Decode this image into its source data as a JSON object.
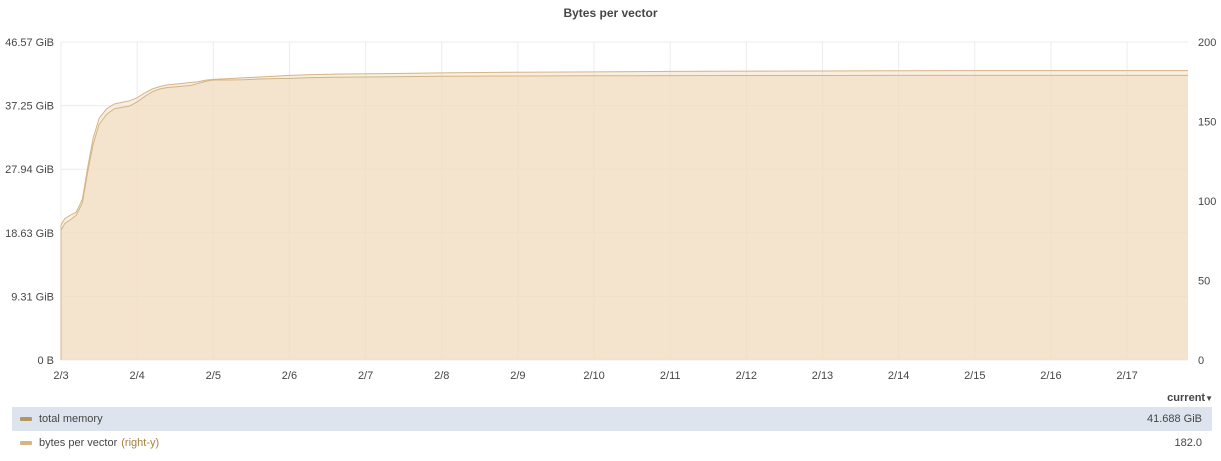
{
  "panel": {
    "title": "Bytes per vector"
  },
  "legend": {
    "header": "current",
    "rows": [
      {
        "name": "total memory",
        "note": "",
        "value": "41.688 GiB",
        "color": "#b39660"
      },
      {
        "name": "bytes per vector",
        "note": "(right-y)",
        "value": "182.0",
        "color": "#d8b483"
      }
    ]
  },
  "chart_data": {
    "type": "area",
    "title": "Bytes per vector",
    "xlabel": "",
    "ylabel": "",
    "grid": true,
    "x": [
      3.0,
      3.05,
      3.12,
      3.2,
      3.28,
      3.35,
      3.42,
      3.5,
      3.6,
      3.7,
      3.8,
      3.9,
      4.0,
      4.1,
      4.2,
      4.3,
      4.4,
      4.5,
      4.6,
      4.7,
      4.8,
      4.9,
      5.0,
      5.2,
      5.4,
      5.6,
      5.8,
      6.0,
      6.3,
      6.6,
      7.0,
      7.5,
      8.0,
      9.0,
      10.0,
      11.0,
      12.0,
      13.0,
      14.0,
      15.0,
      16.0,
      17.0,
      17.8
    ],
    "x_tick_labels": [
      "2/3",
      "2/4",
      "2/5",
      "2/6",
      "2/7",
      "2/8",
      "2/9",
      "2/10",
      "2/11",
      "2/12",
      "2/13",
      "2/14",
      "2/15",
      "2/16",
      "2/17"
    ],
    "left_axis": {
      "ticks": [
        "0 B",
        "9.31 GiB",
        "18.63 GiB",
        "27.94 GiB",
        "37.25 GiB",
        "46.57 GiB"
      ],
      "ylim_gib": [
        0,
        46.57
      ]
    },
    "right_axis": {
      "ticks": [
        "0",
        "50",
        "100",
        "150",
        "200"
      ],
      "ylim": [
        0,
        200
      ]
    },
    "series": [
      {
        "name": "total memory",
        "axis": "left",
        "unit": "GiB",
        "color": "#b39660",
        "values": [
          19.0,
          20.0,
          20.5,
          21.2,
          23.0,
          27.5,
          31.5,
          34.5,
          36.0,
          36.8,
          37.0,
          37.2,
          37.8,
          38.6,
          39.3,
          39.7,
          39.9,
          40.0,
          40.1,
          40.2,
          40.5,
          40.8,
          41.0,
          41.0,
          41.05,
          41.15,
          41.2,
          41.25,
          41.35,
          41.4,
          41.45,
          41.5,
          41.55,
          41.6,
          41.62,
          41.64,
          41.66,
          41.67,
          41.68,
          41.68,
          41.69,
          41.69,
          41.688
        ]
      },
      {
        "name": "bytes per vector",
        "axis": "right",
        "unit": "",
        "color": "#d8b483",
        "values": [
          85,
          89,
          91,
          93,
          101,
          121,
          139,
          152,
          158,
          161,
          162,
          163,
          165,
          168,
          170.5,
          172,
          173,
          173.5,
          174,
          174.5,
          175,
          176,
          176.5,
          177,
          177.5,
          178,
          178.5,
          179,
          179.5,
          179.8,
          180,
          180.3,
          180.6,
          181,
          181.2,
          181.5,
          181.7,
          181.8,
          181.9,
          182,
          182,
          182,
          182
        ]
      }
    ]
  }
}
